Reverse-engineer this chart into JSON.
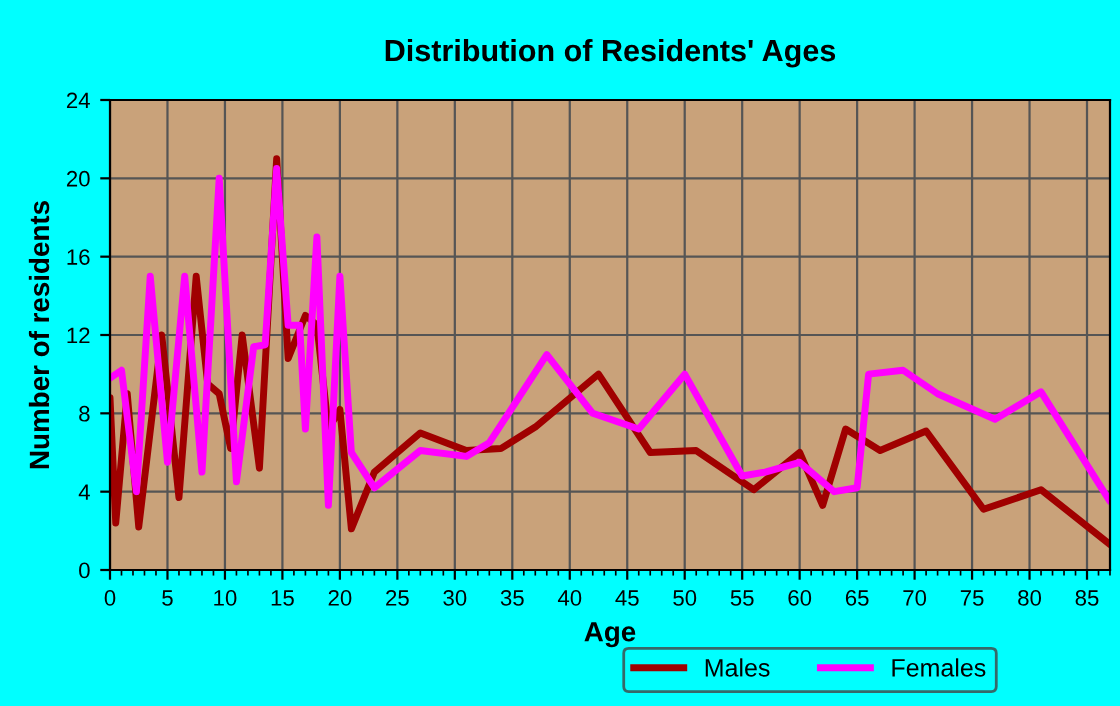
{
  "chart_data": {
    "type": "line",
    "title": "Distribution of Residents' Ages",
    "xlabel": "Age",
    "ylabel": "Number of residents",
    "xlim": [
      0,
      87
    ],
    "xticks": [
      0,
      5,
      10,
      15,
      20,
      25,
      30,
      35,
      40,
      45,
      50,
      55,
      60,
      65,
      70,
      75,
      80,
      85
    ],
    "ylim": [
      0,
      24
    ],
    "yticks": [
      0,
      4,
      8,
      12,
      16,
      20,
      24
    ],
    "grid": true,
    "legend": "bottom",
    "series": [
      {
        "name": "Males",
        "color": "#a00000",
        "x": [
          0,
          0.5,
          1.5,
          2.5,
          4.5,
          6,
          7.5,
          8.5,
          9.5,
          10.5,
          11.5,
          13,
          14.5,
          15.5,
          17,
          18,
          19,
          20,
          21,
          23,
          27,
          31,
          34,
          37,
          42.5,
          47,
          51,
          56,
          60,
          62,
          64,
          67,
          71,
          76,
          81,
          87
        ],
        "values": [
          8.8,
          2.4,
          9,
          2.2,
          12,
          3.7,
          15,
          9.5,
          9,
          6.2,
          12,
          5.2,
          21,
          10.8,
          13,
          12.5,
          7.2,
          8.2,
          2.1,
          5,
          7,
          6.1,
          6.2,
          7.3,
          10,
          6,
          6.1,
          4.1,
          6,
          3.3,
          7.2,
          6.1,
          7.1,
          3.1,
          4.1,
          1.3
        ]
      },
      {
        "name": "Females",
        "color": "#ff00ff",
        "x": [
          0,
          1,
          2.3,
          3.5,
          5,
          6.5,
          8,
          9.5,
          11,
          12.5,
          13.5,
          14.5,
          15.5,
          16.5,
          17,
          18,
          19,
          20,
          21,
          23,
          27,
          31,
          33,
          38,
          42,
          46,
          50,
          55,
          57,
          60,
          63,
          65,
          66,
          69,
          72,
          77,
          81,
          87
        ],
        "values": [
          9.8,
          10.2,
          4,
          15,
          5.5,
          15,
          5,
          20,
          4.5,
          11.4,
          11.5,
          20.5,
          12.5,
          12.5,
          7.2,
          17,
          3.3,
          15,
          6,
          4.2,
          6.1,
          5.8,
          6.5,
          11,
          8,
          7.2,
          10,
          4.8,
          5,
          5.5,
          4,
          4.2,
          10,
          10.2,
          9,
          7.7,
          9.1,
          3.5
        ]
      }
    ]
  }
}
